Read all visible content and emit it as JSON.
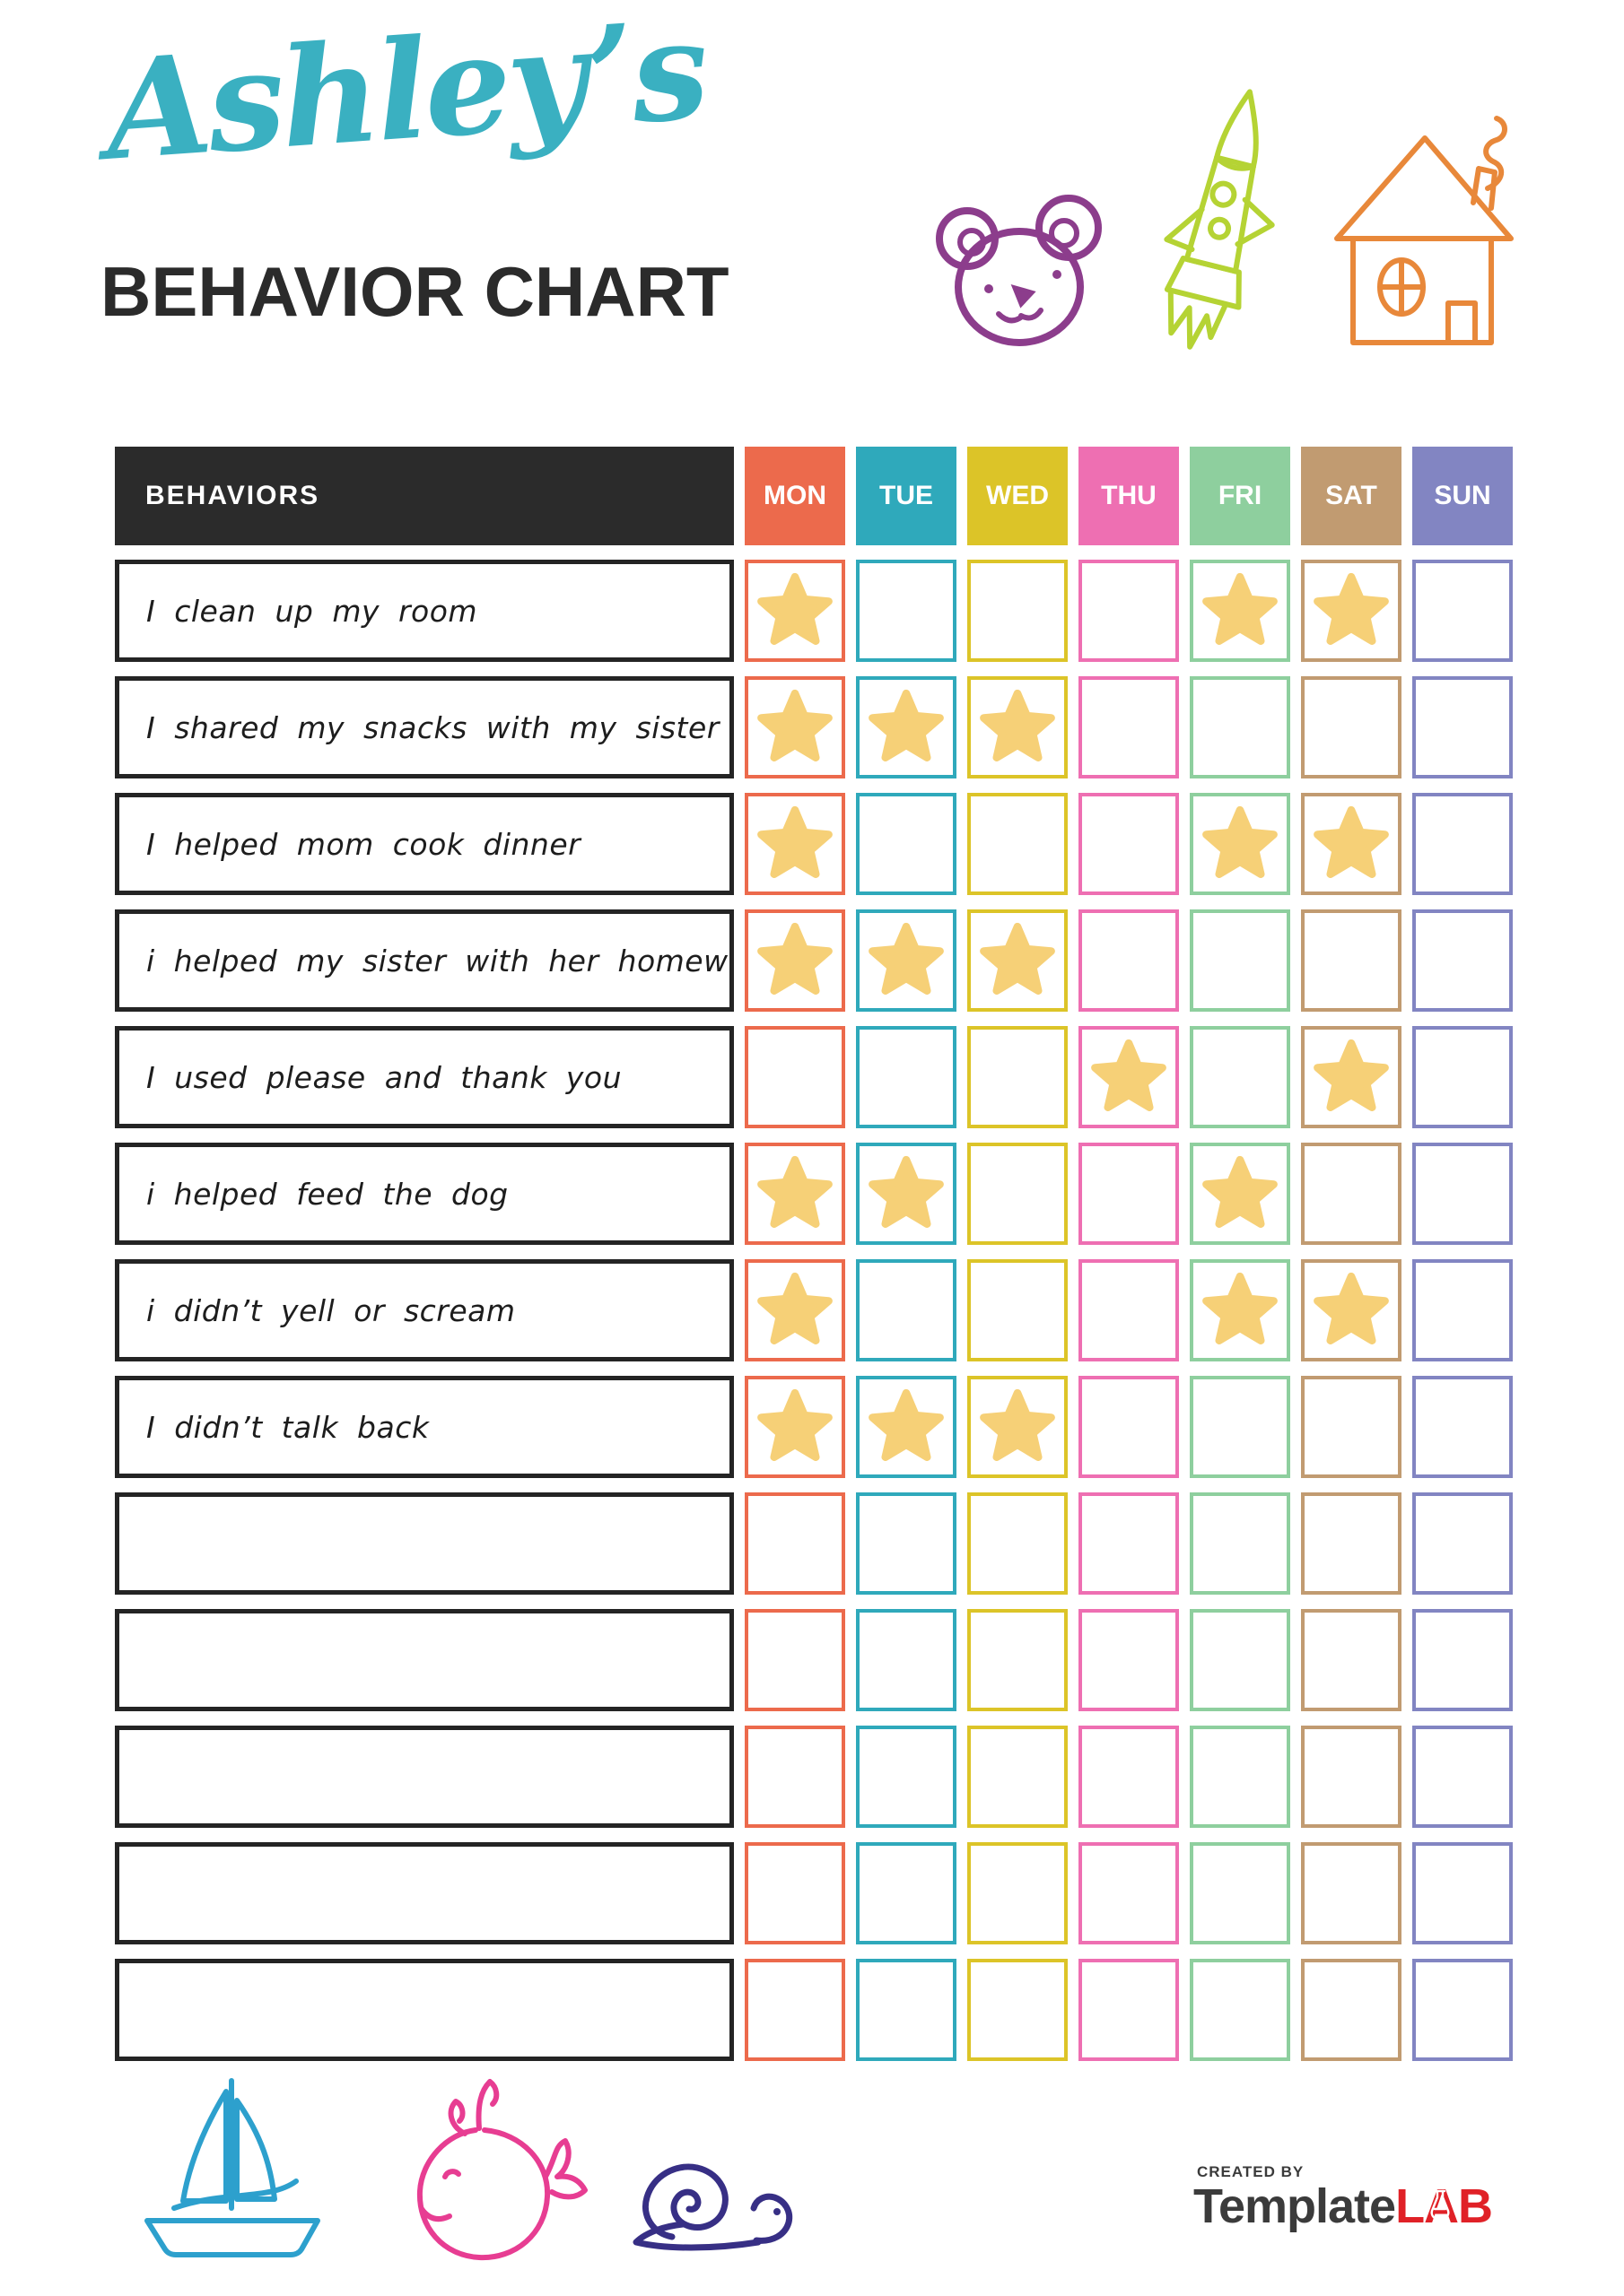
{
  "page": {
    "title": "Ashley’s",
    "subtitle": "BEHAVIOR CHART"
  },
  "colors": {
    "title_teal": "#3ab0c1",
    "ink": "#2b2b2b",
    "header_bg": "#2b2b2b",
    "star": "#f6d077",
    "bear": "#8c3d8c",
    "rocket": "#b5d334",
    "house": "#e8883a",
    "sailboat": "#2da0cd",
    "whale": "#e73d92",
    "snail": "#372f85",
    "logo_gray": "#3b3b3b",
    "logo_red": "#e02127"
  },
  "icons": {
    "top": [
      "bear-icon",
      "rocket-icon",
      "house-icon"
    ],
    "bottom": [
      "sailboat-icon",
      "whale-icon",
      "snail-icon"
    ],
    "cell_marker": "star-icon"
  },
  "table": {
    "behaviors_header": "BEHAVIORS",
    "days": [
      {
        "label": "MON",
        "color": "#ec6a4c"
      },
      {
        "label": "TUE",
        "color": "#2fa9bb"
      },
      {
        "label": "WED",
        "color": "#dcc428"
      },
      {
        "label": "THU",
        "color": "#ee6fb2"
      },
      {
        "label": "FRI",
        "color": "#8ecf9e"
      },
      {
        "label": "SAT",
        "color": "#c19b71"
      },
      {
        "label": "SUN",
        "color": "#8285c2"
      }
    ],
    "rows": [
      {
        "label": "I clean up my room",
        "stars": [
          true,
          false,
          false,
          false,
          true,
          true,
          false
        ]
      },
      {
        "label": "I shared my snacks with my sister",
        "stars": [
          true,
          true,
          true,
          false,
          false,
          false,
          false
        ]
      },
      {
        "label": "I helped mom cook dinner",
        "stars": [
          true,
          false,
          false,
          false,
          true,
          true,
          false
        ]
      },
      {
        "label": "i helped my sister with her homework",
        "stars": [
          true,
          true,
          true,
          false,
          false,
          false,
          false
        ]
      },
      {
        "label": "I used please and thank you",
        "stars": [
          false,
          false,
          false,
          true,
          false,
          true,
          false
        ]
      },
      {
        "label": "i helped feed the dog",
        "stars": [
          true,
          true,
          false,
          false,
          true,
          false,
          false
        ]
      },
      {
        "label": "i didn’t yell or scream",
        "stars": [
          true,
          false,
          false,
          false,
          true,
          true,
          false
        ]
      },
      {
        "label": "I didn’t talk back",
        "stars": [
          true,
          true,
          true,
          false,
          false,
          false,
          false
        ]
      },
      {
        "label": "",
        "stars": [
          false,
          false,
          false,
          false,
          false,
          false,
          false
        ]
      },
      {
        "label": "",
        "stars": [
          false,
          false,
          false,
          false,
          false,
          false,
          false
        ]
      },
      {
        "label": "",
        "stars": [
          false,
          false,
          false,
          false,
          false,
          false,
          false
        ]
      },
      {
        "label": "",
        "stars": [
          false,
          false,
          false,
          false,
          false,
          false,
          false
        ]
      },
      {
        "label": "",
        "stars": [
          false,
          false,
          false,
          false,
          false,
          false,
          false
        ]
      }
    ]
  },
  "footer": {
    "created_by": "CREATED BY",
    "logo_template": "Template",
    "logo_lab": "LAB"
  }
}
